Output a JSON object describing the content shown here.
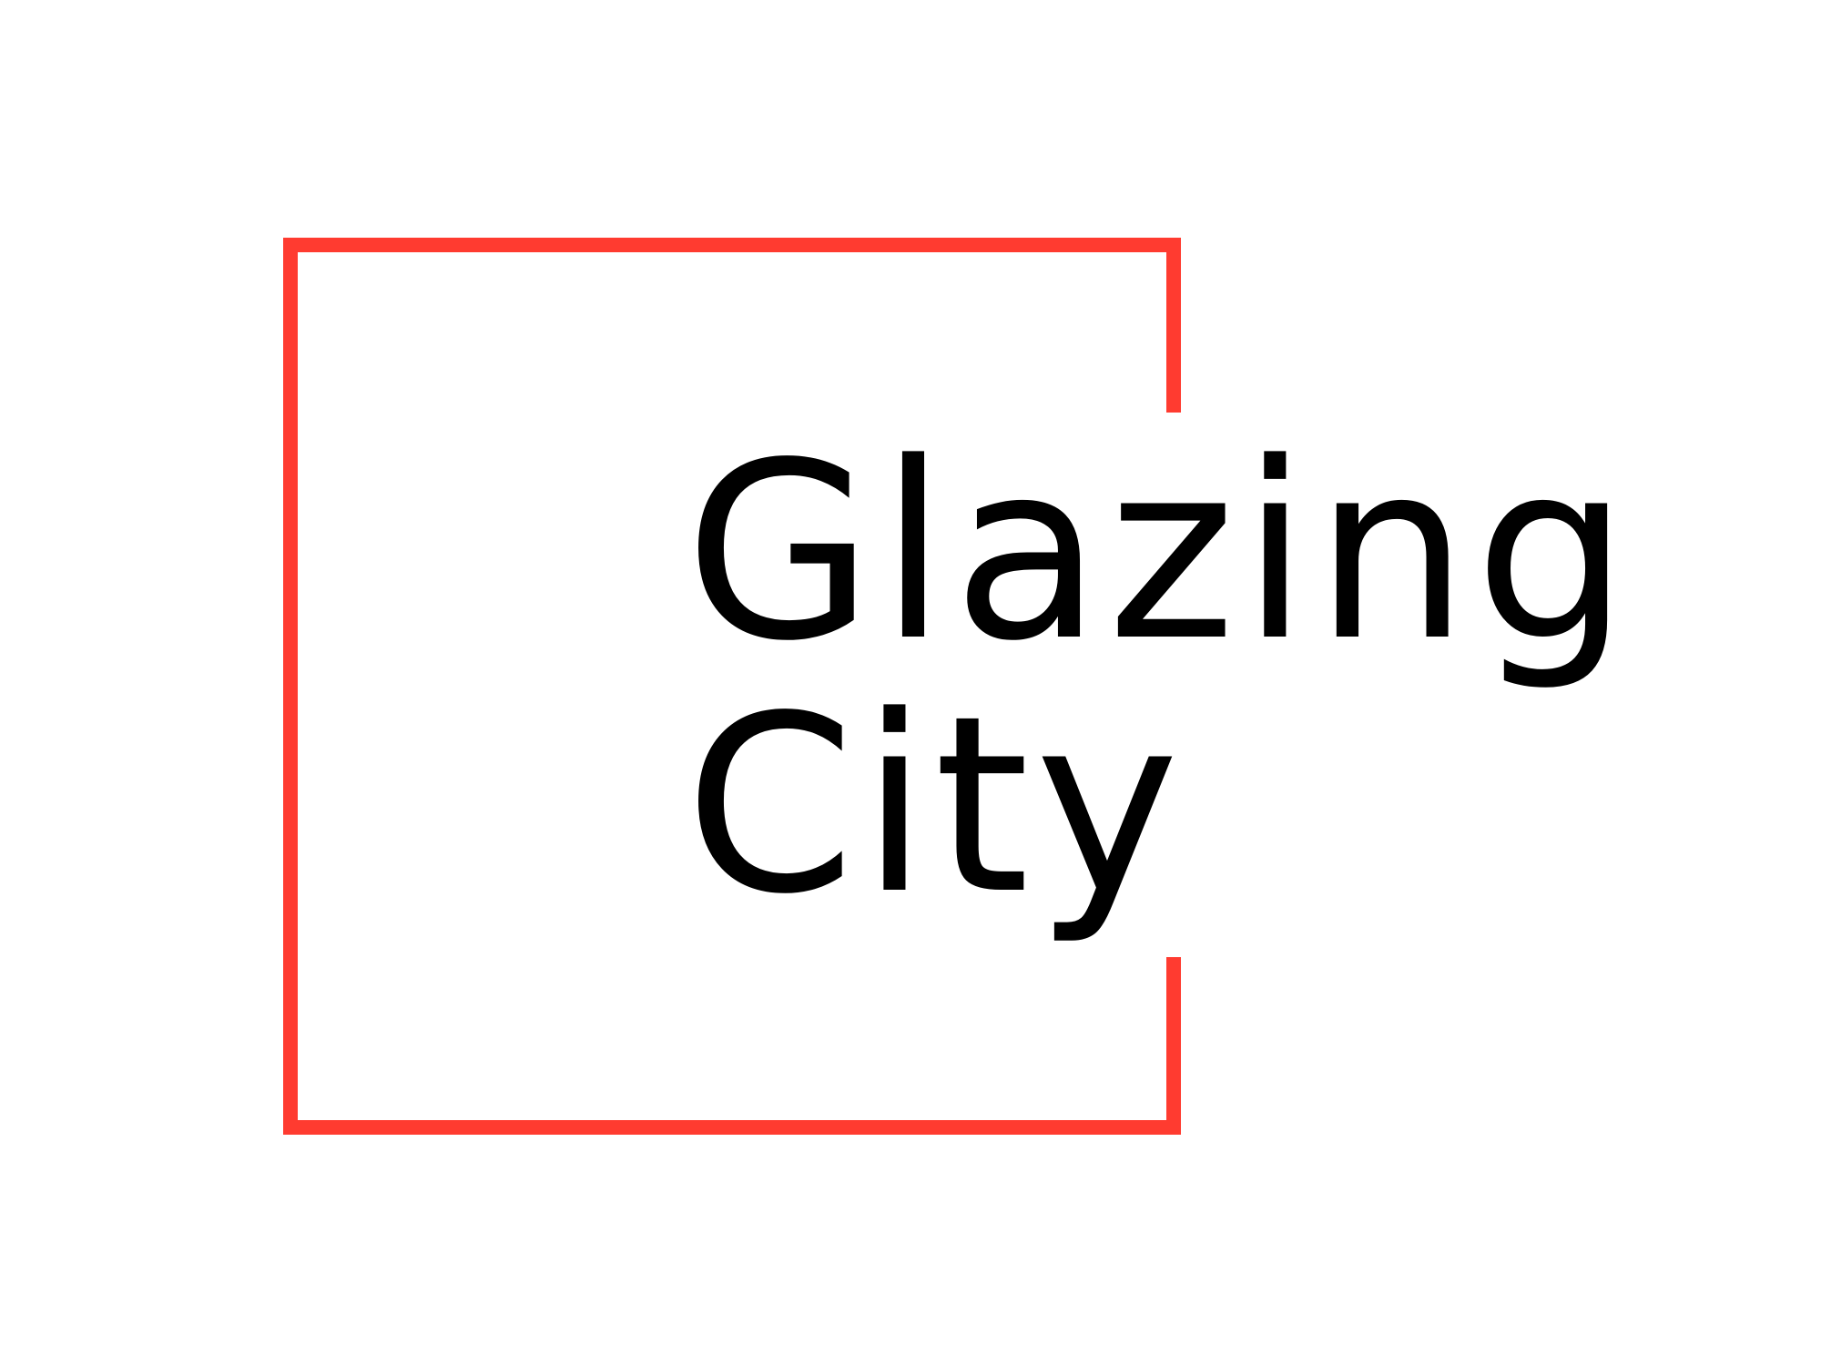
{
  "logo": {
    "line1": "Glazing",
    "line2": "City",
    "colors": {
      "frame": "#FF3B30",
      "text": "#000000",
      "background": "#FFFFFF"
    }
  }
}
